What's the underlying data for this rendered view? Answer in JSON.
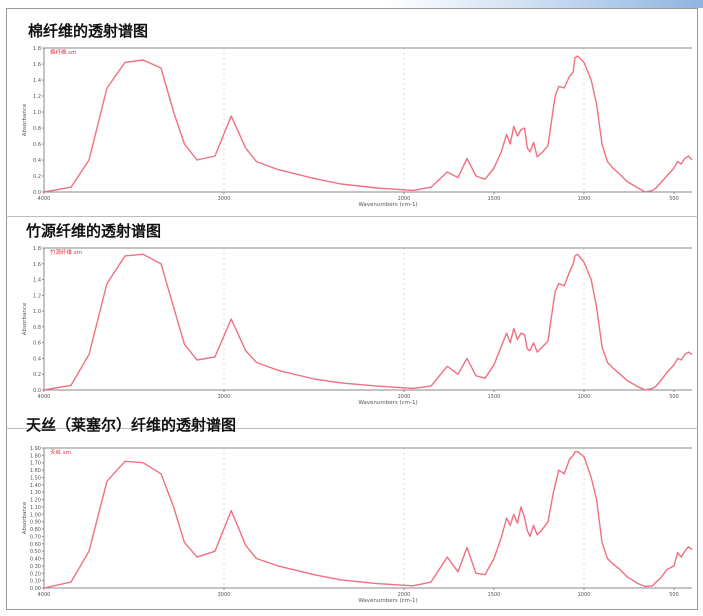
{
  "chart_data": [
    {
      "type": "line",
      "title": "棉纤维的透射谱图",
      "legend": "棉纤维.sm",
      "xlabel": "Wavenumbers (cm-1)",
      "ylabel": "Absorbance",
      "xlim": [
        4000,
        400
      ],
      "ylim": [
        0.0,
        1.8
      ],
      "x_ticks": [
        "4000",
        "3000",
        "2000",
        "1500",
        "1000",
        "500"
      ],
      "y_ticks": [
        "0.0",
        "0.2",
        "0.4",
        "0.6",
        "0.8",
        "1.0",
        "1.2",
        "1.4",
        "1.6",
        "1.8"
      ],
      "grid": true,
      "series": [
        {
          "x": [
            4000,
            3850,
            3750,
            3650,
            3550,
            3450,
            3350,
            3280,
            3220,
            3150,
            3050,
            2960,
            2920,
            2880,
            2820,
            2700,
            2500,
            2350,
            2150,
            1950,
            1850,
            1760,
            1700,
            1650,
            1600,
            1550,
            1500,
            1460,
            1430,
            1410,
            1390,
            1370,
            1350,
            1330,
            1315,
            1300,
            1280,
            1260,
            1230,
            1200,
            1170,
            1160,
            1140,
            1110,
            1080,
            1060,
            1050,
            1035,
            1000,
            960,
            930,
            900,
            870,
            840,
            800,
            760,
            700,
            660,
            620,
            600,
            580,
            560,
            540,
            500,
            480,
            460,
            440,
            420,
            400
          ],
          "y": [
            0.0,
            0.06,
            0.4,
            1.3,
            1.62,
            1.65,
            1.55,
            1.0,
            0.6,
            0.4,
            0.45,
            0.95,
            0.75,
            0.55,
            0.38,
            0.28,
            0.17,
            0.1,
            0.05,
            0.02,
            0.06,
            0.25,
            0.18,
            0.42,
            0.2,
            0.16,
            0.3,
            0.5,
            0.72,
            0.6,
            0.82,
            0.7,
            0.78,
            0.8,
            0.55,
            0.5,
            0.62,
            0.44,
            0.5,
            0.58,
            1.05,
            1.2,
            1.32,
            1.3,
            1.45,
            1.5,
            1.68,
            1.7,
            1.62,
            1.4,
            1.1,
            0.6,
            0.38,
            0.3,
            0.22,
            0.13,
            0.05,
            0.0,
            0.02,
            0.05,
            0.1,
            0.15,
            0.2,
            0.3,
            0.38,
            0.35,
            0.42,
            0.45,
            0.4
          ]
        }
      ]
    },
    {
      "type": "line",
      "title": "竹源纤维的透射谱图",
      "legend": "竹源纤维.sm",
      "xlabel": "Wavenumbers (cm-1)",
      "ylabel": "Absorbance",
      "xlim": [
        4000,
        400
      ],
      "ylim": [
        0.0,
        1.8
      ],
      "x_ticks": [
        "4000",
        "3000",
        "2000",
        "1500",
        "1000",
        "500"
      ],
      "y_ticks": [
        "0.0",
        "0.2",
        "0.4",
        "0.6",
        "0.8",
        "1.0",
        "1.2",
        "1.4",
        "1.6",
        "1.8"
      ],
      "grid": true,
      "series": [
        {
          "x": [
            4000,
            3850,
            3750,
            3650,
            3550,
            3450,
            3350,
            3280,
            3220,
            3150,
            3050,
            2960,
            2920,
            2880,
            2820,
            2700,
            2500,
            2350,
            2150,
            1950,
            1850,
            1760,
            1700,
            1650,
            1600,
            1550,
            1500,
            1460,
            1430,
            1410,
            1390,
            1370,
            1350,
            1330,
            1315,
            1300,
            1280,
            1260,
            1230,
            1200,
            1170,
            1160,
            1140,
            1110,
            1080,
            1060,
            1050,
            1035,
            1000,
            960,
            930,
            900,
            870,
            840,
            800,
            760,
            700,
            660,
            620,
            600,
            580,
            560,
            540,
            500,
            480,
            460,
            440,
            420,
            400
          ],
          "y": [
            0.0,
            0.06,
            0.45,
            1.35,
            1.7,
            1.72,
            1.6,
            1.05,
            0.58,
            0.38,
            0.42,
            0.9,
            0.7,
            0.5,
            0.35,
            0.25,
            0.14,
            0.09,
            0.05,
            0.02,
            0.05,
            0.3,
            0.2,
            0.4,
            0.18,
            0.15,
            0.32,
            0.55,
            0.72,
            0.6,
            0.78,
            0.64,
            0.72,
            0.7,
            0.52,
            0.5,
            0.6,
            0.48,
            0.55,
            0.62,
            1.1,
            1.25,
            1.35,
            1.32,
            1.5,
            1.6,
            1.7,
            1.72,
            1.62,
            1.4,
            1.05,
            0.55,
            0.35,
            0.28,
            0.2,
            0.12,
            0.04,
            0.0,
            0.02,
            0.05,
            0.1,
            0.16,
            0.22,
            0.32,
            0.4,
            0.38,
            0.45,
            0.48,
            0.45
          ]
        }
      ]
    },
    {
      "type": "line",
      "title": "天丝（莱塞尔）纤维的透射谱图",
      "legend": "天丝.sm",
      "xlabel": "Wavenumbers (cm-1)",
      "ylabel": "Absorbance",
      "xlim": [
        4000,
        400
      ],
      "ylim": [
        0.0,
        1.9
      ],
      "x_ticks": [
        "4000",
        "3000",
        "2000",
        "1500",
        "1000",
        "500"
      ],
      "y_ticks": [
        "0.00",
        "0.10",
        "0.20",
        "0.30",
        "0.40",
        "0.50",
        "0.60",
        "0.70",
        "0.80",
        "0.90",
        "1.00",
        "1.10",
        "1.20",
        "1.30",
        "1.40",
        "1.50",
        "1.60",
        "1.70",
        "1.80",
        "1.90"
      ],
      "grid": true,
      "series": [
        {
          "x": [
            4000,
            3850,
            3750,
            3650,
            3550,
            3450,
            3350,
            3280,
            3220,
            3150,
            3050,
            2960,
            2920,
            2880,
            2820,
            2700,
            2500,
            2350,
            2150,
            1950,
            1850,
            1760,
            1700,
            1650,
            1600,
            1550,
            1500,
            1460,
            1430,
            1410,
            1390,
            1370,
            1350,
            1330,
            1315,
            1300,
            1280,
            1260,
            1230,
            1200,
            1170,
            1160,
            1140,
            1110,
            1080,
            1060,
            1050,
            1035,
            1000,
            960,
            930,
            900,
            870,
            840,
            800,
            760,
            700,
            660,
            620,
            600,
            580,
            560,
            540,
            500,
            480,
            460,
            440,
            420,
            400
          ],
          "y": [
            0.0,
            0.08,
            0.5,
            1.45,
            1.72,
            1.7,
            1.55,
            1.1,
            0.62,
            0.42,
            0.5,
            1.05,
            0.82,
            0.58,
            0.4,
            0.3,
            0.18,
            0.11,
            0.06,
            0.03,
            0.08,
            0.42,
            0.22,
            0.55,
            0.2,
            0.18,
            0.4,
            0.68,
            0.95,
            0.85,
            1.0,
            0.88,
            1.1,
            0.95,
            0.78,
            0.7,
            0.85,
            0.72,
            0.8,
            0.9,
            1.3,
            1.4,
            1.6,
            1.55,
            1.75,
            1.8,
            1.85,
            1.85,
            1.78,
            1.5,
            1.2,
            0.62,
            0.4,
            0.33,
            0.25,
            0.15,
            0.06,
            0.02,
            0.03,
            0.08,
            0.12,
            0.18,
            0.25,
            0.3,
            0.48,
            0.42,
            0.5,
            0.56,
            0.52
          ]
        }
      ]
    }
  ]
}
